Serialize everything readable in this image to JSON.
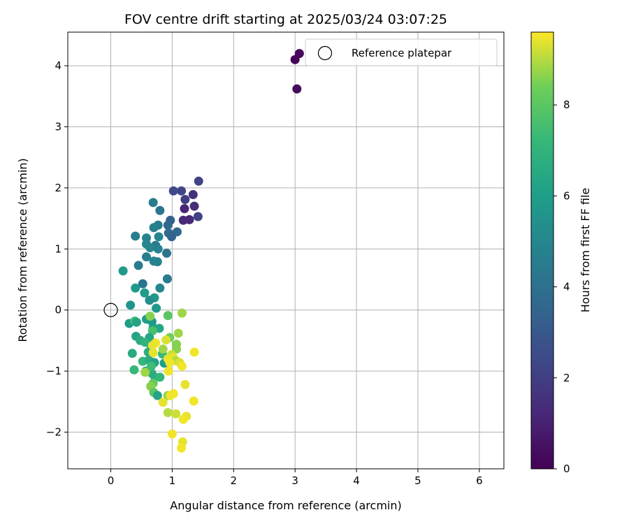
{
  "chart_data": {
    "type": "scatter",
    "title": "FOV centre drift starting at 2025/03/24 03:07:25",
    "xlabel": "Angular distance from reference (arcmin)",
    "ylabel": "Rotation from reference (arcmin)",
    "xlim": [
      -0.7,
      6.4
    ],
    "ylim": [
      -2.6,
      4.55
    ],
    "xticks": [
      0,
      1,
      2,
      3,
      4,
      5,
      6
    ],
    "yticks": [
      -2,
      -1,
      0,
      1,
      2,
      3,
      4
    ],
    "grid": true,
    "colormap": "viridis",
    "colorbar": {
      "label": "Hours from first FF file",
      "range": [
        0,
        9.6
      ],
      "ticks": [
        0,
        2,
        4,
        6,
        8
      ]
    },
    "legend": {
      "position": "top-right",
      "entries": [
        "Reference platepar"
      ]
    },
    "reference_point": {
      "x": 0,
      "y": 0
    },
    "points": [
      [
        3.0,
        4.1,
        0.1
      ],
      [
        3.07,
        4.2,
        0.2
      ],
      [
        3.03,
        3.62,
        0.3
      ],
      [
        1.43,
        2.11,
        2.2
      ],
      [
        1.02,
        1.95,
        2.5
      ],
      [
        1.15,
        1.95,
        2.3
      ],
      [
        1.34,
        1.89,
        1.5
      ],
      [
        1.21,
        1.81,
        2.0
      ],
      [
        1.36,
        1.7,
        1.4
      ],
      [
        1.2,
        1.66,
        1.1
      ],
      [
        1.42,
        1.53,
        2.1
      ],
      [
        1.18,
        1.47,
        1.3
      ],
      [
        1.28,
        1.48,
        1.2
      ],
      [
        0.69,
        1.76,
        4.5
      ],
      [
        0.8,
        1.63,
        4.2
      ],
      [
        0.97,
        1.47,
        3.3
      ],
      [
        0.77,
        1.39,
        4.5
      ],
      [
        0.93,
        1.39,
        3.6
      ],
      [
        0.7,
        1.35,
        4.7
      ],
      [
        1.08,
        1.28,
        3.6
      ],
      [
        0.94,
        1.26,
        3.7
      ],
      [
        0.99,
        1.2,
        3.5
      ],
      [
        0.4,
        1.21,
        4.6
      ],
      [
        0.58,
        1.18,
        4.8
      ],
      [
        0.78,
        1.2,
        4.9
      ],
      [
        0.58,
        1.08,
        4.9
      ],
      [
        0.73,
        1.06,
        4.4
      ],
      [
        0.64,
        1.02,
        5.0
      ],
      [
        0.77,
        1.0,
        4.8
      ],
      [
        0.58,
        0.87,
        4.6
      ],
      [
        0.91,
        0.93,
        4.1
      ],
      [
        0.7,
        0.8,
        4.8
      ],
      [
        0.76,
        0.79,
        4.8
      ],
      [
        0.45,
        0.73,
        4.5
      ],
      [
        0.2,
        0.64,
        5.8
      ],
      [
        0.92,
        0.51,
        4.5
      ],
      [
        0.52,
        0.43,
        4.2
      ],
      [
        0.8,
        0.36,
        5.0
      ],
      [
        0.4,
        0.36,
        5.8
      ],
      [
        0.55,
        0.28,
        6.0
      ],
      [
        0.71,
        0.2,
        5.8
      ],
      [
        0.63,
        0.16,
        5.3
      ],
      [
        0.32,
        0.08,
        5.6
      ],
      [
        0.74,
        0.03,
        5.8
      ],
      [
        0.58,
        -0.15,
        6.0
      ],
      [
        0.67,
        -0.19,
        5.8
      ],
      [
        0.3,
        -0.22,
        5.9
      ],
      [
        0.39,
        -0.18,
        7.6
      ],
      [
        0.42,
        -0.2,
        6.3
      ],
      [
        0.69,
        -0.29,
        6.0
      ],
      [
        0.79,
        -0.3,
        6.4
      ],
      [
        0.68,
        -0.34,
        7.6
      ],
      [
        0.41,
        -0.43,
        6.3
      ],
      [
        0.63,
        -0.45,
        6.4
      ],
      [
        0.48,
        -0.5,
        6.6
      ],
      [
        0.56,
        -0.53,
        7.0
      ],
      [
        0.66,
        -0.6,
        6.8
      ],
      [
        0.61,
        -0.69,
        6.7
      ],
      [
        0.35,
        -0.71,
        6.6
      ],
      [
        0.84,
        -0.72,
        7.2
      ],
      [
        0.52,
        -0.84,
        7.2
      ],
      [
        0.62,
        -0.82,
        6.6
      ],
      [
        0.71,
        -0.86,
        6.2
      ],
      [
        0.87,
        -0.87,
        6.0
      ],
      [
        0.38,
        -0.98,
        7.2
      ],
      [
        0.57,
        -1.0,
        6.4
      ],
      [
        0.67,
        -1.04,
        6.8
      ],
      [
        0.56,
        -1.02,
        8.8
      ],
      [
        0.72,
        -1.1,
        6.6
      ],
      [
        0.8,
        -1.1,
        7.2
      ],
      [
        0.69,
        -1.2,
        8.2
      ],
      [
        0.65,
        -1.25,
        8.6
      ],
      [
        0.7,
        -1.35,
        8.0
      ],
      [
        0.76,
        -1.4,
        6.3
      ],
      [
        0.66,
        -0.92,
        7.4
      ],
      [
        1.16,
        -0.05,
        8.8
      ],
      [
        0.93,
        -0.09,
        8.0
      ],
      [
        0.64,
        -0.1,
        8.6
      ],
      [
        1.1,
        -0.38,
        8.8
      ],
      [
        0.96,
        -0.45,
        8.4
      ],
      [
        0.9,
        -0.49,
        9.3
      ],
      [
        0.73,
        -0.54,
        9.5
      ],
      [
        1.07,
        -0.56,
        8.6
      ],
      [
        0.68,
        -0.58,
        9.4
      ],
      [
        1.07,
        -0.64,
        8.6
      ],
      [
        0.85,
        -0.64,
        8.8
      ],
      [
        0.69,
        -0.7,
        9.4
      ],
      [
        1.36,
        -0.69,
        9.5
      ],
      [
        0.99,
        -0.73,
        9.2
      ],
      [
        1.02,
        -0.78,
        9.4
      ],
      [
        0.93,
        -0.8,
        9.4
      ],
      [
        1.06,
        -0.83,
        9.0
      ],
      [
        1.12,
        -0.86,
        9.3
      ],
      [
        0.96,
        -0.86,
        9.5
      ],
      [
        1.16,
        -0.92,
        9.5
      ],
      [
        0.94,
        -1.0,
        9.5
      ],
      [
        1.21,
        -1.22,
        9.4
      ],
      [
        1.02,
        -1.37,
        9.5
      ],
      [
        0.93,
        -1.4,
        8.6
      ],
      [
        0.97,
        -1.4,
        9.5
      ],
      [
        1.35,
        -1.49,
        9.5
      ],
      [
        0.85,
        -1.51,
        9.4
      ],
      [
        0.93,
        -1.68,
        9.0
      ],
      [
        1.06,
        -1.7,
        9.2
      ],
      [
        1.23,
        -1.74,
        9.4
      ],
      [
        1.18,
        -1.79,
        9.5
      ],
      [
        1.0,
        -2.03,
        9.5
      ],
      [
        1.17,
        -2.16,
        9.4
      ],
      [
        1.15,
        -2.26,
        9.5
      ]
    ]
  }
}
